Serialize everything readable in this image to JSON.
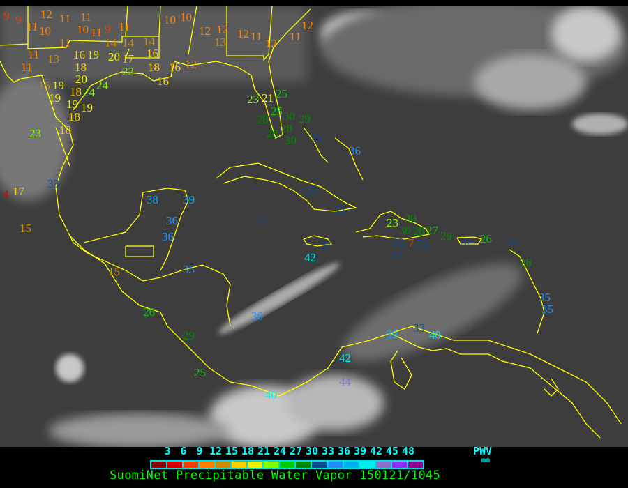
{
  "title": "SuomiNet Precipitable Water Vapor 150121/1045",
  "legend": {
    "unit_label": "PWV",
    "unit": "mm",
    "ticks": [
      "3",
      "6",
      "9",
      "12",
      "15",
      "18",
      "21",
      "24",
      "27",
      "30",
      "33",
      "36",
      "39",
      "42",
      "45",
      "48"
    ],
    "colors": [
      "#8b0000",
      "#d00000",
      "#f04000",
      "#ff8000",
      "#d08a00",
      "#ffd000",
      "#f0f000",
      "#80ff00",
      "#00cc00",
      "#008a00",
      "#104a90",
      "#2090ff",
      "#00b0f0",
      "#00f0f0",
      "#9070d0",
      "#9030f0",
      "#900090"
    ]
  },
  "map": {
    "coastline_color": "#ffff00"
  },
  "stations": [
    {
      "value": "9"
    },
    {
      "value": "9"
    },
    {
      "value": "11"
    },
    {
      "value": "12"
    },
    {
      "value": "10"
    },
    {
      "value": "11"
    },
    {
      "value": "11"
    },
    {
      "value": "10"
    },
    {
      "value": "11"
    },
    {
      "value": "9"
    },
    {
      "value": "11"
    },
    {
      "value": "14"
    },
    {
      "value": "14"
    },
    {
      "value": "14"
    },
    {
      "value": "16"
    },
    {
      "value": "11"
    },
    {
      "value": "11"
    },
    {
      "value": "13"
    },
    {
      "value": "16"
    },
    {
      "value": "19"
    },
    {
      "value": "20"
    },
    {
      "value": "17"
    },
    {
      "value": "11"
    },
    {
      "value": "18"
    },
    {
      "value": "20"
    },
    {
      "value": "15"
    },
    {
      "value": "19"
    },
    {
      "value": "18"
    },
    {
      "value": "19"
    },
    {
      "value": "19"
    },
    {
      "value": "24"
    },
    {
      "value": "24"
    },
    {
      "value": "18"
    },
    {
      "value": "19"
    },
    {
      "value": "18"
    },
    {
      "value": "23"
    },
    {
      "value": "22"
    },
    {
      "value": "18"
    },
    {
      "value": "16"
    },
    {
      "value": "16"
    },
    {
      "value": "10"
    },
    {
      "value": "10"
    },
    {
      "value": "12"
    },
    {
      "value": "12"
    },
    {
      "value": "13"
    },
    {
      "value": "12"
    },
    {
      "value": "11"
    },
    {
      "value": "12"
    },
    {
      "value": "11"
    },
    {
      "value": "12"
    },
    {
      "value": "12"
    },
    {
      "value": "23"
    },
    {
      "value": "21"
    },
    {
      "value": "25"
    },
    {
      "value": "25"
    },
    {
      "value": "28"
    },
    {
      "value": "30"
    },
    {
      "value": "28"
    },
    {
      "value": "28"
    },
    {
      "value": "30"
    },
    {
      "value": "29"
    },
    {
      "value": "31"
    },
    {
      "value": "36"
    },
    {
      "value": "4"
    },
    {
      "value": "17"
    },
    {
      "value": "33"
    },
    {
      "value": "15"
    },
    {
      "value": "38"
    },
    {
      "value": "39"
    },
    {
      "value": "36"
    },
    {
      "value": "36"
    },
    {
      "value": "35"
    },
    {
      "value": "15"
    },
    {
      "value": "32"
    },
    {
      "value": "26"
    },
    {
      "value": "29"
    },
    {
      "value": "25"
    },
    {
      "value": "36"
    },
    {
      "value": "33"
    },
    {
      "value": "32"
    },
    {
      "value": "30"
    },
    {
      "value": "30"
    },
    {
      "value": "23"
    },
    {
      "value": "28"
    },
    {
      "value": "7"
    },
    {
      "value": "33"
    },
    {
      "value": "31"
    },
    {
      "value": "32"
    },
    {
      "value": "27"
    },
    {
      "value": "29"
    },
    {
      "value": "32"
    },
    {
      "value": "26"
    },
    {
      "value": "33"
    },
    {
      "value": "28"
    },
    {
      "value": "42"
    },
    {
      "value": "33"
    },
    {
      "value": "35"
    },
    {
      "value": "35"
    },
    {
      "value": "39"
    },
    {
      "value": "33"
    },
    {
      "value": "40"
    },
    {
      "value": "42"
    },
    {
      "value": "44"
    },
    {
      "value": "40"
    }
  ]
}
